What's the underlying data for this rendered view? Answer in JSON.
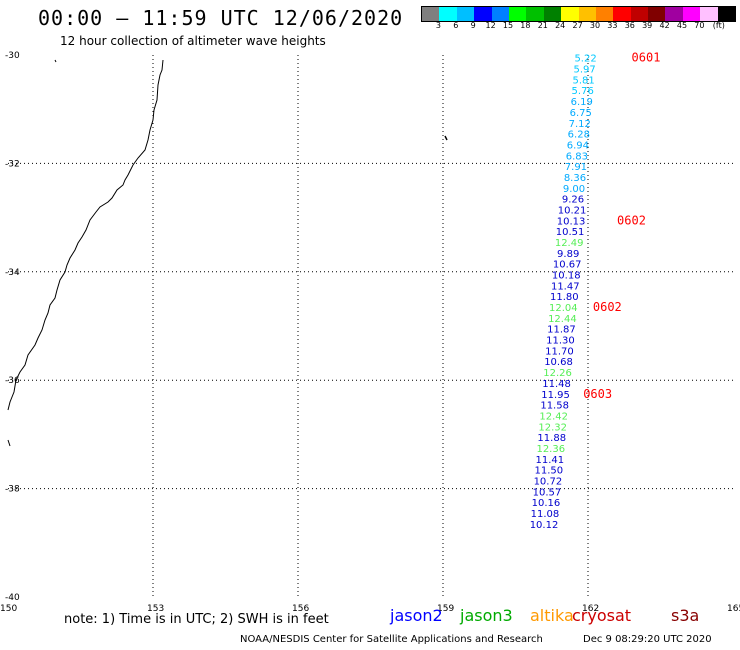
{
  "header": {
    "title": "00:00 – 11:59 UTC 12/06/2020",
    "subtitle": "12 hour collection of altimeter wave heights"
  },
  "colorbar": {
    "colors": [
      "#7f7f7f",
      "#00ffff",
      "#00bfff",
      "#0000ff",
      "#0080ff",
      "#00ff00",
      "#00c000",
      "#008000",
      "#ffff00",
      "#ffc000",
      "#ff8000",
      "#ff0000",
      "#c00000",
      "#800000",
      "#a000a0",
      "#ff00ff",
      "#ffc0ff",
      "#000000"
    ],
    "labels": [
      "3",
      "6",
      "9",
      "12",
      "15",
      "18",
      "21",
      "24",
      "27",
      "30",
      "33",
      "36",
      "39",
      "42",
      "45",
      "70",
      "(ft)"
    ]
  },
  "map": {
    "lon_labels": [
      "150",
      "153",
      "156",
      "159",
      "162",
      "165"
    ],
    "lat_labels": [
      "-30",
      "-32",
      "-34",
      "-36",
      "-38",
      "-40"
    ]
  },
  "observations": [
    {
      "v": "5.22",
      "lat": -30.05,
      "lon": 161.95,
      "c": "#00c8ff"
    },
    {
      "v": "5.97",
      "lat": -30.25,
      "lon": 161.93,
      "c": "#00c8ff"
    },
    {
      "v": "5.81",
      "lat": -30.45,
      "lon": 161.91,
      "c": "#00c8ff"
    },
    {
      "v": "5.76",
      "lat": -30.65,
      "lon": 161.89,
      "c": "#00c8ff"
    },
    {
      "v": "6.19",
      "lat": -30.85,
      "lon": 161.87,
      "c": "#00aaff"
    },
    {
      "v": "6.75",
      "lat": -31.05,
      "lon": 161.85,
      "c": "#00aaff"
    },
    {
      "v": "7.12",
      "lat": -31.25,
      "lon": 161.83,
      "c": "#00aaff"
    },
    {
      "v": "6.28",
      "lat": -31.45,
      "lon": 161.81,
      "c": "#00aaff"
    },
    {
      "v": "6.94",
      "lat": -31.65,
      "lon": 161.79,
      "c": "#00aaff"
    },
    {
      "v": "6.83",
      "lat": -31.85,
      "lon": 161.77,
      "c": "#00aaff"
    },
    {
      "v": "7.91",
      "lat": -32.05,
      "lon": 161.75,
      "c": "#00aaff"
    },
    {
      "v": "8.36",
      "lat": -32.25,
      "lon": 161.73,
      "c": "#00aaff"
    },
    {
      "v": "9.00",
      "lat": -32.45,
      "lon": 161.71,
      "c": "#00aaff"
    },
    {
      "v": "9.26",
      "lat": -32.65,
      "lon": 161.69,
      "c": "#0000cc"
    },
    {
      "v": "10.21",
      "lat": -32.85,
      "lon": 161.67,
      "c": "#0000cc"
    },
    {
      "v": "10.13",
      "lat": -33.05,
      "lon": 161.65,
      "c": "#0000cc"
    },
    {
      "v": "10.51",
      "lat": -33.25,
      "lon": 161.63,
      "c": "#0000cc"
    },
    {
      "v": "12.49",
      "lat": -33.45,
      "lon": 161.61,
      "c": "#55ee55"
    },
    {
      "v": "9.89",
      "lat": -33.65,
      "lon": 161.59,
      "c": "#0000cc"
    },
    {
      "v": "10.67",
      "lat": -33.85,
      "lon": 161.57,
      "c": "#0000cc"
    },
    {
      "v": "10.18",
      "lat": -34.05,
      "lon": 161.55,
      "c": "#0000cc"
    },
    {
      "v": "11.47",
      "lat": -34.25,
      "lon": 161.53,
      "c": "#0000cc"
    },
    {
      "v": "11.80",
      "lat": -34.45,
      "lon": 161.51,
      "c": "#0000cc"
    },
    {
      "v": "12.04",
      "lat": -34.65,
      "lon": 161.49,
      "c": "#55ee55"
    },
    {
      "v": "12.44",
      "lat": -34.85,
      "lon": 161.47,
      "c": "#55ee55"
    },
    {
      "v": "11.87",
      "lat": -35.05,
      "lon": 161.45,
      "c": "#0000cc"
    },
    {
      "v": "11.30",
      "lat": -35.25,
      "lon": 161.43,
      "c": "#0000cc"
    },
    {
      "v": "11.70",
      "lat": -35.45,
      "lon": 161.41,
      "c": "#0000cc"
    },
    {
      "v": "10.68",
      "lat": -35.65,
      "lon": 161.39,
      "c": "#0000cc"
    },
    {
      "v": "12.26",
      "lat": -35.85,
      "lon": 161.37,
      "c": "#55ee55"
    },
    {
      "v": "11.48",
      "lat": -36.05,
      "lon": 161.35,
      "c": "#0000cc"
    },
    {
      "v": "11.95",
      "lat": -36.25,
      "lon": 161.33,
      "c": "#0000cc"
    },
    {
      "v": "11.58",
      "lat": -36.45,
      "lon": 161.31,
      "c": "#0000cc"
    },
    {
      "v": "12.42",
      "lat": -36.65,
      "lon": 161.29,
      "c": "#55ee55"
    },
    {
      "v": "12.32",
      "lat": -36.85,
      "lon": 161.27,
      "c": "#55ee55"
    },
    {
      "v": "11.88",
      "lat": -37.05,
      "lon": 161.25,
      "c": "#0000cc"
    },
    {
      "v": "12.36",
      "lat": -37.25,
      "lon": 161.23,
      "c": "#55ee55"
    },
    {
      "v": "11.41",
      "lat": -37.45,
      "lon": 161.21,
      "c": "#0000cc"
    },
    {
      "v": "11.50",
      "lat": -37.65,
      "lon": 161.19,
      "c": "#0000cc"
    },
    {
      "v": "10.72",
      "lat": -37.85,
      "lon": 161.17,
      "c": "#0000cc"
    },
    {
      "v": "10.57",
      "lat": -38.05,
      "lon": 161.15,
      "c": "#0000cc"
    },
    {
      "v": "10.16",
      "lat": -38.25,
      "lon": 161.13,
      "c": "#0000cc"
    },
    {
      "v": "11.08",
      "lat": -38.45,
      "lon": 161.11,
      "c": "#0000cc"
    },
    {
      "v": "10.12",
      "lat": -38.65,
      "lon": 161.09,
      "c": "#0000cc"
    }
  ],
  "time_labels": [
    {
      "t": "0601",
      "lat": -30.05,
      "lon": 163.2
    },
    {
      "t": "0602",
      "lat": -33.05,
      "lon": 162.9
    },
    {
      "t": "0602",
      "lat": -34.65,
      "lon": 162.4
    },
    {
      "t": "0603",
      "lat": -36.25,
      "lon": 162.2
    }
  ],
  "footer": {
    "note": "note: 1) Time is in UTC; 2) SWH is in feet",
    "satellites": [
      {
        "name": "jason2",
        "color": "#0000ff"
      },
      {
        "name": "jason3",
        "color": "#00aa00"
      },
      {
        "name": "altika",
        "color": "#ff9900"
      },
      {
        "name": "cryosat",
        "color": "#cc0000"
      },
      {
        "name": "s3a",
        "color": "#880000"
      }
    ],
    "credit": "NOAA/NESDIS Center for Satellite Applications and Research",
    "timestamp": "Dec  9 08:29:20 UTC 2020"
  }
}
